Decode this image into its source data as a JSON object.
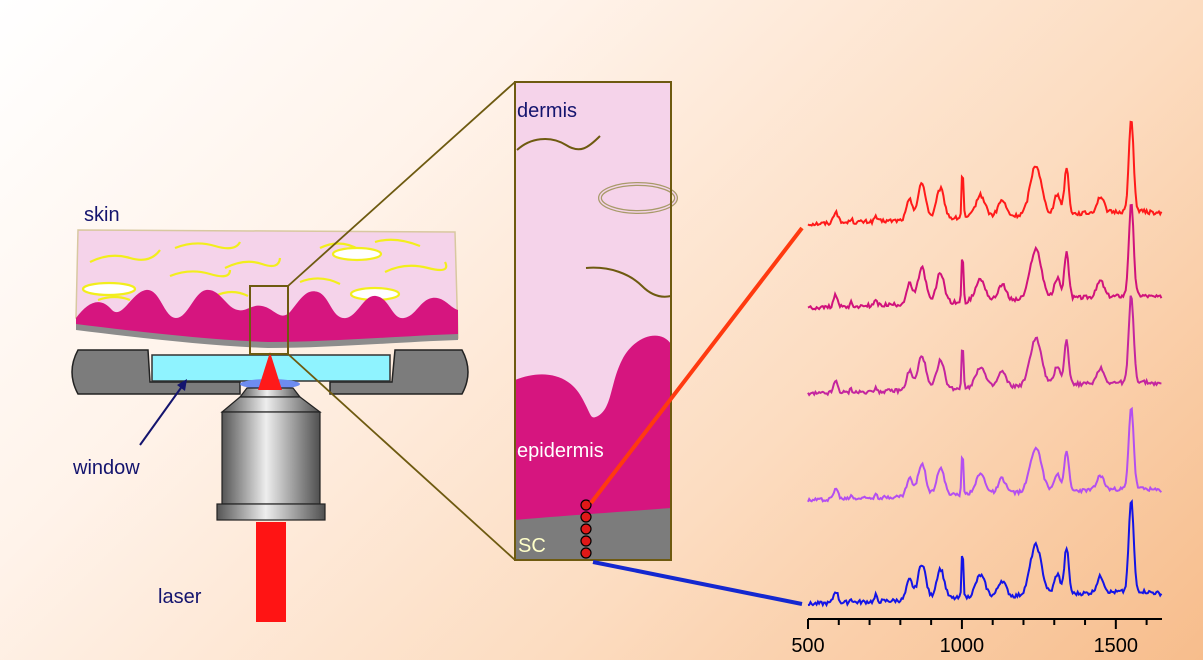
{
  "labels": {
    "skin": "skin",
    "window": "window",
    "laser": "laser",
    "dermis": "dermis",
    "epidermis": "epidermis",
    "sc": "SC"
  },
  "chart_data": {
    "type": "line",
    "x_ticks": [
      500,
      1000,
      1500
    ],
    "xlim": [
      500,
      1650
    ],
    "series": [
      {
        "color": "#ff1a1a"
      },
      {
        "color": "#d0127c"
      },
      {
        "color": "#c4259f"
      },
      {
        "color": "#b44ff0"
      },
      {
        "color": "#1414e6"
      }
    ]
  }
}
